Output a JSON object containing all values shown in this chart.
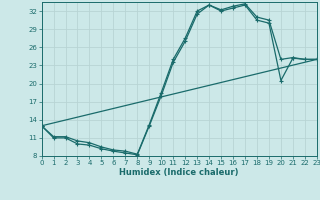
{
  "xlabel": "Humidex (Indice chaleur)",
  "bg_color": "#cce8e8",
  "line_color": "#1a6b6b",
  "grid_color": "#b8d4d4",
  "series": [
    {
      "x": [
        0,
        1,
        2,
        3,
        4,
        5,
        6,
        7,
        8,
        9,
        10,
        11,
        12,
        13,
        14,
        15,
        16,
        17,
        18,
        19,
        20,
        21,
        22,
        23
      ],
      "y": [
        13.0,
        11.2,
        11.2,
        10.5,
        10.2,
        9.5,
        9.0,
        8.8,
        8.3,
        13.2,
        18.5,
        24.0,
        27.5,
        32.0,
        33.0,
        32.2,
        32.8,
        33.2,
        31.0,
        30.5,
        24.0,
        24.3,
        24.0,
        24.0
      ]
    },
    {
      "x": [
        0,
        1,
        2,
        3,
        4,
        5,
        6,
        7,
        8,
        9,
        10,
        11,
        12,
        13,
        14,
        15,
        16,
        17,
        18,
        19,
        20,
        21,
        22,
        23
      ],
      "y": [
        13.0,
        11.0,
        11.0,
        10.0,
        9.8,
        9.2,
        8.8,
        8.5,
        8.2,
        13.0,
        18.0,
        23.5,
        27.0,
        31.5,
        33.0,
        32.0,
        32.5,
        33.0,
        30.5,
        30.0,
        20.5,
        24.2,
        24.0,
        24.0
      ]
    },
    {
      "x": [
        0,
        23
      ],
      "y": [
        13.0,
        24.0
      ]
    }
  ],
  "ylim": [
    8,
    33.5
  ],
  "xlim": [
    0,
    23
  ],
  "yticks": [
    8,
    11,
    14,
    17,
    20,
    23,
    26,
    29,
    32
  ],
  "xticks": [
    0,
    1,
    2,
    3,
    4,
    5,
    6,
    7,
    8,
    9,
    10,
    11,
    12,
    13,
    14,
    15,
    16,
    17,
    18,
    19,
    20,
    21,
    22,
    23
  ],
  "tick_fontsize": 5.0,
  "xlabel_fontsize": 6.0
}
